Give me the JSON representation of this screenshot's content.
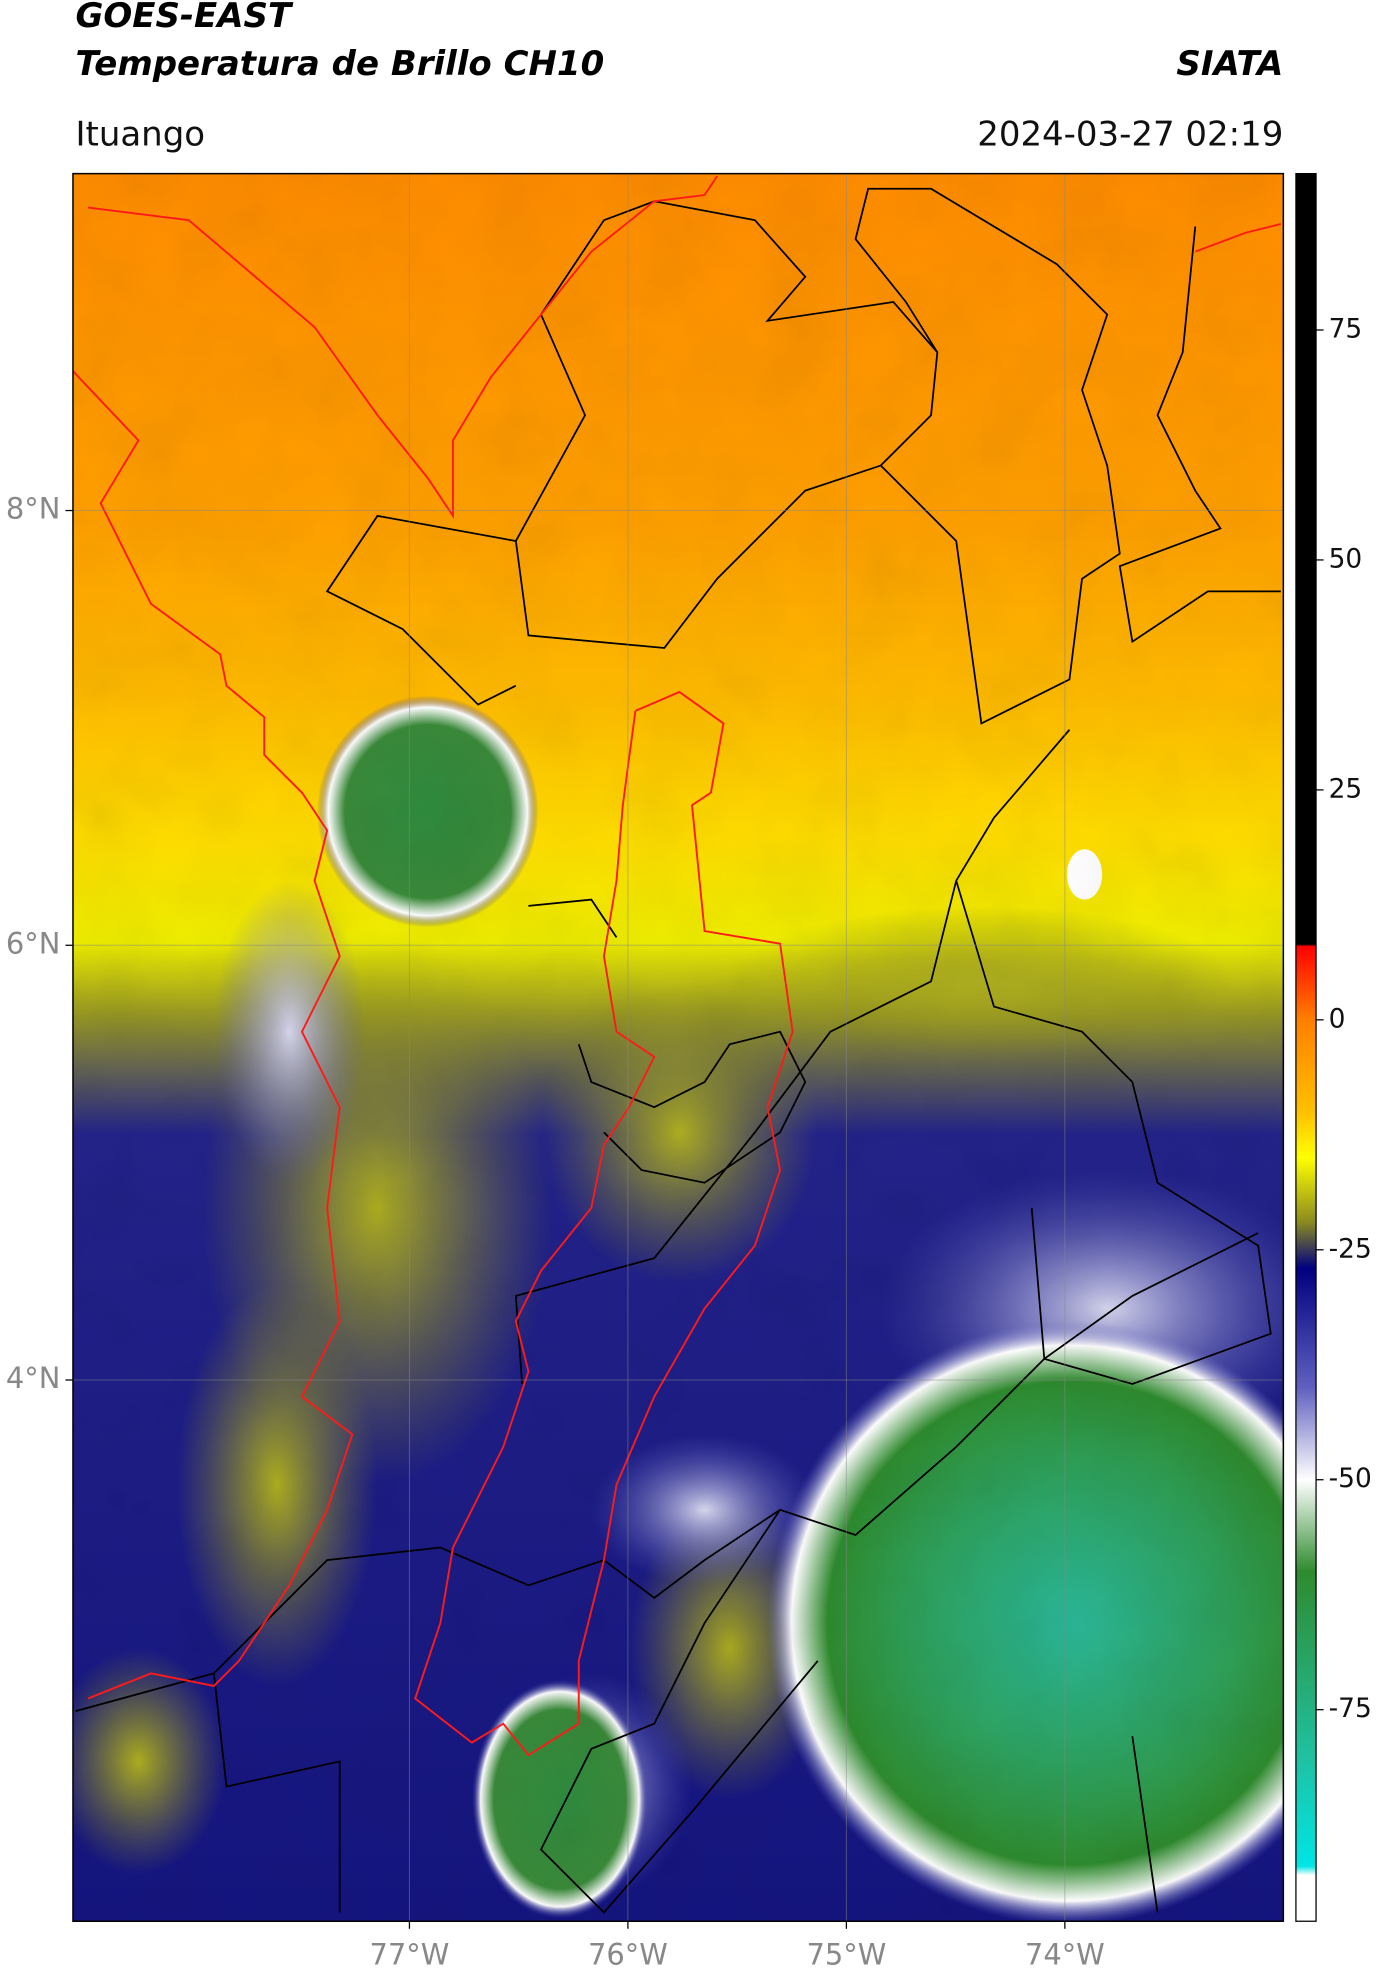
{
  "header": {
    "title": "GOES-EAST",
    "subtitle": "Temperatura de Brillo CH10",
    "source": "SIATA",
    "region": "Ituango",
    "datetime": "2024-03-27 02:19"
  },
  "map": {
    "lonlim": [
      -78.54,
      -73.0
    ],
    "latlim": [
      1.51,
      9.55
    ],
    "lonticks": [
      {
        "value": -77,
        "label": "77°W"
      },
      {
        "value": -76,
        "label": "76°W"
      },
      {
        "value": -75,
        "label": "75°W"
      },
      {
        "value": -74,
        "label": "74°W"
      }
    ],
    "latticks": [
      {
        "value": 8,
        "label": "8°N"
      },
      {
        "value": 6,
        "label": "6°N"
      },
      {
        "value": 4,
        "label": "4°N"
      }
    ],
    "grid": true
  },
  "colorbar": {
    "lim": [
      -98,
      92
    ],
    "ticks": [
      75,
      50,
      25,
      0,
      -25,
      -50,
      -75
    ],
    "colors": [
      {
        "value": 92,
        "color": "#000000"
      },
      {
        "value": 8.2,
        "color": "#000000"
      },
      {
        "value": 8,
        "color": "#ff0000"
      },
      {
        "value": 0,
        "color": "#ff7f00"
      },
      {
        "value": -10,
        "color": "#ffc000"
      },
      {
        "value": -15,
        "color": "#ffff00"
      },
      {
        "value": -22,
        "color": "#8a8a20"
      },
      {
        "value": -27,
        "color": "#000080"
      },
      {
        "value": -40,
        "color": "#6060c0"
      },
      {
        "value": -50,
        "color": "#ffffff"
      },
      {
        "value": -60,
        "color": "#2e8b2e"
      },
      {
        "value": -80,
        "color": "#20c0a0"
      },
      {
        "value": -92,
        "color": "#00e5e5"
      },
      {
        "value": -93,
        "color": "#ffffff"
      },
      {
        "value": -98,
        "color": "#ffffff"
      }
    ]
  }
}
